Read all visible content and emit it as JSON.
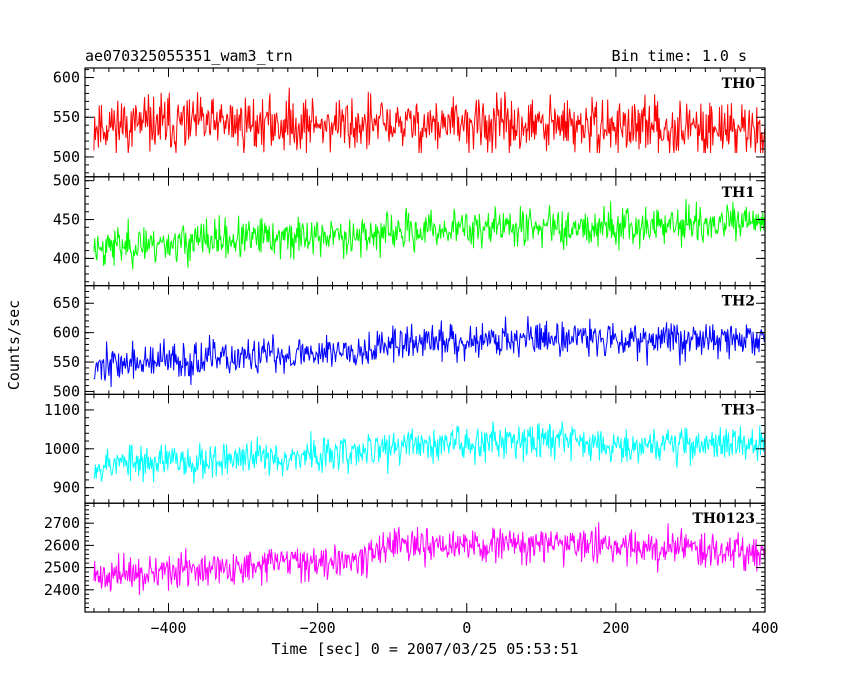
{
  "header": {
    "title": "ae070325055351_wam3_trn",
    "bin_time": "Bin time: 1.0 s"
  },
  "chart_data": {
    "type": "line",
    "ylabel": "Counts/sec",
    "xlabel": "Time [sec] 0 = 2007/03/25 05:53:51",
    "xlim": [
      -512,
      400
    ],
    "x_ticks": [
      -400,
      -200,
      0,
      200,
      400
    ],
    "x_tick_labels": [
      "−400",
      "−200",
      "0",
      "200",
      "400"
    ],
    "grid": false,
    "panels": [
      {
        "name": "TH0",
        "color": "#ff0000",
        "ylim": [
          475,
          612
        ],
        "y_ticks": [
          500,
          550,
          600
        ],
        "y_tick_labels": [
          "500",
          "550",
          "600"
        ],
        "trend": [
          [
            -500,
            540
          ],
          [
            -300,
            542
          ],
          [
            0,
            540
          ],
          [
            200,
            538
          ],
          [
            400,
            535
          ]
        ],
        "noise": 25,
        "min": 505,
        "max": 612,
        "seed": 11
      },
      {
        "name": "TH1",
        "color": "#00ff00",
        "ylim": [
          365,
          505
        ],
        "y_ticks": [
          400,
          450,
          500
        ],
        "y_tick_labels": [
          "400",
          "450",
          "500"
        ],
        "trend": [
          [
            -500,
            415
          ],
          [
            -300,
            425
          ],
          [
            -100,
            432
          ],
          [
            0,
            440
          ],
          [
            200,
            442
          ],
          [
            400,
            445
          ]
        ],
        "noise": 18,
        "min": 368,
        "max": 502,
        "seed": 23
      },
      {
        "name": "TH2",
        "color": "#0000ff",
        "ylim": [
          495,
          680
        ],
        "y_ticks": [
          500,
          550,
          600,
          650
        ],
        "y_tick_labels": [
          "500",
          "550",
          "600",
          "650"
        ],
        "trend": [
          [
            -500,
            545
          ],
          [
            -300,
            557
          ],
          [
            -150,
            572
          ],
          [
            -50,
            585
          ],
          [
            100,
            592
          ],
          [
            400,
            588
          ]
        ],
        "noise": 22,
        "min": 498,
        "max": 675,
        "seed": 37
      },
      {
        "name": "TH3",
        "color": "#00ffff",
        "ylim": [
          860,
          1140
        ],
        "y_ticks": [
          900,
          1000,
          1100
        ],
        "y_tick_labels": [
          "900",
          "1000",
          "1100"
        ],
        "trend": [
          [
            -500,
            960
          ],
          [
            -300,
            975
          ],
          [
            -150,
            988
          ],
          [
            -100,
            1005
          ],
          [
            100,
            1030
          ],
          [
            200,
            1010
          ],
          [
            400,
            1015
          ]
        ],
        "noise": 33,
        "min": 868,
        "max": 1135,
        "seed": 53
      },
      {
        "name": "TH0123",
        "color": "#ff00ff",
        "ylim": [
          2300,
          2790
        ],
        "y_ticks": [
          2400,
          2500,
          2600,
          2700
        ],
        "y_tick_labels": [
          "2400",
          "2500",
          "2600",
          "2700"
        ],
        "trend": [
          [
            -500,
            2460
          ],
          [
            -300,
            2500
          ],
          [
            -150,
            2550
          ],
          [
            -100,
            2590
          ],
          [
            100,
            2605
          ],
          [
            250,
            2595
          ],
          [
            400,
            2570
          ]
        ],
        "noise": 55,
        "min": 2310,
        "max": 2785,
        "seed": 71
      }
    ]
  }
}
